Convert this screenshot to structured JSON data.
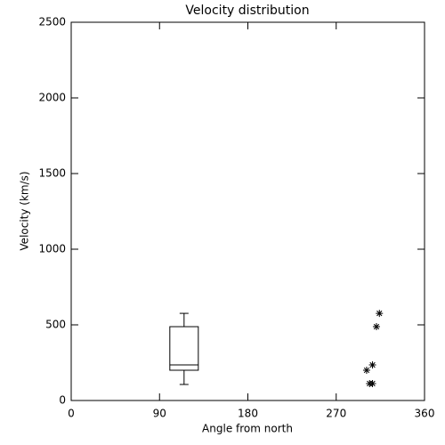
{
  "chart_data": {
    "type": "box",
    "title": "Velocity distribution",
    "x_label": "Angle from north",
    "y_label": "Velocity (km/s)",
    "box": {
      "x": 115,
      "whisker_low": 106,
      "q1": 200,
      "median": 235,
      "q3": 488,
      "whisker_high": 576
    },
    "points": {
      "x": [
        301,
        307,
        311,
        314,
        304,
        307
      ],
      "y": [
        200,
        235,
        488,
        576,
        112,
        112
      ]
    },
    "color": "#000000",
    "xlim": [
      0,
      360
    ],
    "xticks": [
      0,
      90,
      180,
      270,
      360
    ],
    "ylim": [
      0,
      2500
    ],
    "yticks": [
      0,
      500,
      1000,
      1500,
      2000,
      2500
    ]
  }
}
